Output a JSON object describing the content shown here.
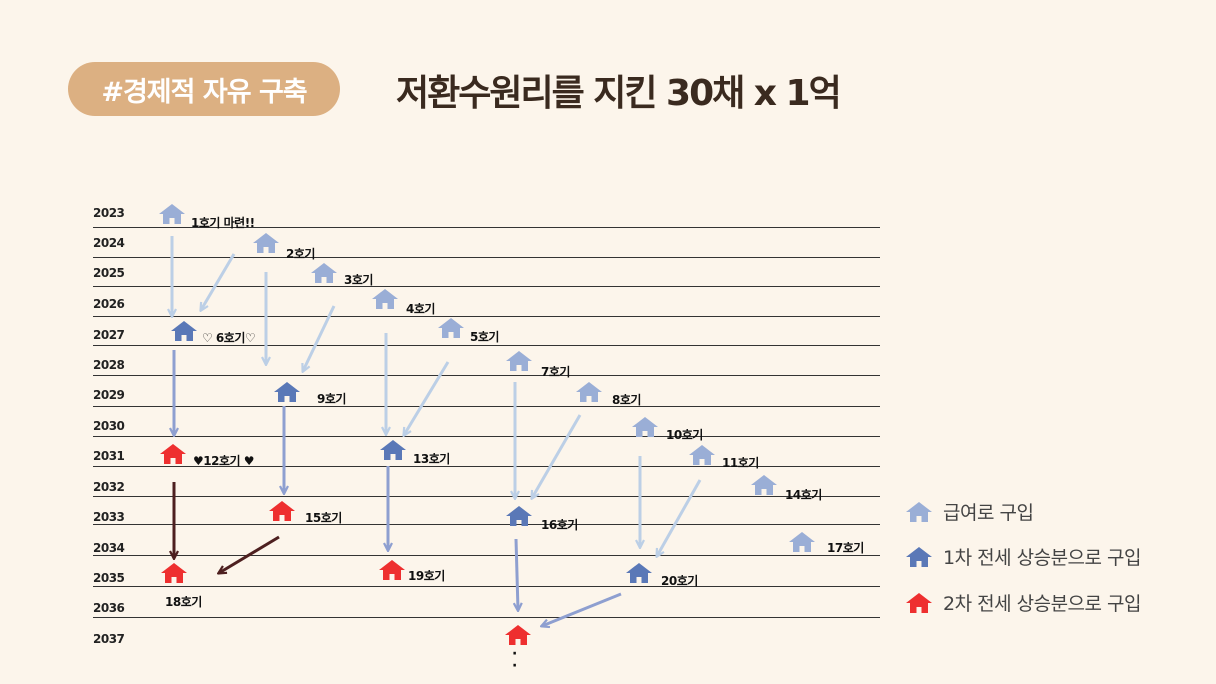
{
  "header": {
    "tag": "#경제적 자유 구축",
    "title": "저환수원리를 지킨 30채 x 1억"
  },
  "years": [
    "2023",
    "2024",
    "2025",
    "2026",
    "2027",
    "2028",
    "2029",
    "2030",
    "2031",
    "2032",
    "2033",
    "2034",
    "2035",
    "2036",
    "2037"
  ],
  "houses": {
    "h1": "1호기 마련!!",
    "h2": "2호기",
    "h3": "3호기",
    "h4": "4호기",
    "h5": "5호기",
    "h6": "♡ 6호기♡",
    "h7": "7호기",
    "h8": "8호기",
    "h9": "9호기",
    "h10": "10호기",
    "h11": "11호기",
    "h12": "♥12호기 ♥",
    "h13": "13호기",
    "h14": "14호기",
    "h15": "15호기",
    "h16": "16호기",
    "h17": "17호기",
    "h18": "18호기",
    "h19": "19호기",
    "h20": "20호기"
  },
  "legend": {
    "light": {
      "label": "급여로 구입",
      "color": "#9aaed6"
    },
    "blue": {
      "label": "1차 전세 상승분으로 구입",
      "color": "#5a78b7"
    },
    "red": {
      "label": "2차 전세 상승분으로 구입",
      "color": "#ee2f2f"
    }
  },
  "continuation": "·\n·"
}
